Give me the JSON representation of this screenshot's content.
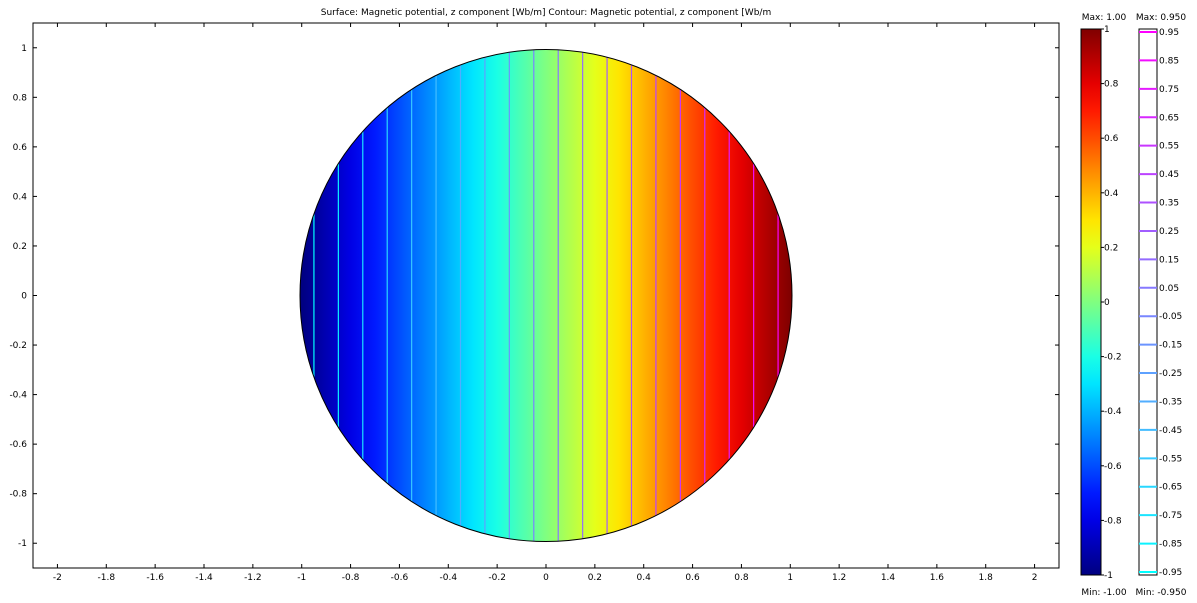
{
  "chart_data": {
    "type": "heatmap",
    "title": "Surface: Magnetic potential, z component [Wb/m]   Contour: Magnetic potential, z component [Wb/m",
    "xlabel": "",
    "ylabel": "",
    "xlim": [
      -2.1,
      2.1
    ],
    "ylim": [
      -1.1,
      1.1
    ],
    "x_ticks": [
      -2,
      -1.8,
      -1.6,
      -1.4,
      -1.2,
      -1,
      -0.8,
      -0.6,
      -0.4,
      -0.2,
      0,
      0.2,
      0.4,
      0.6,
      0.8,
      1,
      1.2,
      1.4,
      1.6,
      1.8,
      2
    ],
    "y_ticks": [
      1,
      0.8,
      0.6,
      0.4,
      0.2,
      0,
      -0.2,
      -0.4,
      -0.6,
      -0.8,
      -1
    ],
    "domain": {
      "shape": "circle",
      "center": [
        0,
        0
      ],
      "radius": 1
    },
    "field": "x",
    "surface": {
      "colormap": "jet",
      "min": -1,
      "max": 1,
      "max_label": "Max: 1.00",
      "min_label": "Min: -1.00",
      "ticks": [
        1,
        0.8,
        0.6,
        0.4,
        0.2,
        0,
        -0.2,
        -0.4,
        -0.6,
        -0.8,
        -1
      ]
    },
    "contour": {
      "colormap": "cool",
      "levels": [
        -0.95,
        -0.85,
        -0.75,
        -0.65,
        -0.55,
        -0.45,
        -0.35,
        -0.25,
        -0.15,
        -0.05,
        0.05,
        0.15,
        0.25,
        0.35,
        0.45,
        0.55,
        0.65,
        0.75,
        0.85,
        0.95
      ],
      "max_label": "Max: 0.950",
      "min_label": "Min: -0.950",
      "ticks": [
        0.95,
        0.85,
        0.75,
        0.65,
        0.55,
        0.45,
        0.35,
        0.25,
        0.15,
        0.05,
        -0.05,
        -0.15,
        -0.25,
        -0.35,
        -0.45,
        -0.55,
        -0.65,
        -0.75,
        -0.85,
        -0.95
      ]
    }
  }
}
